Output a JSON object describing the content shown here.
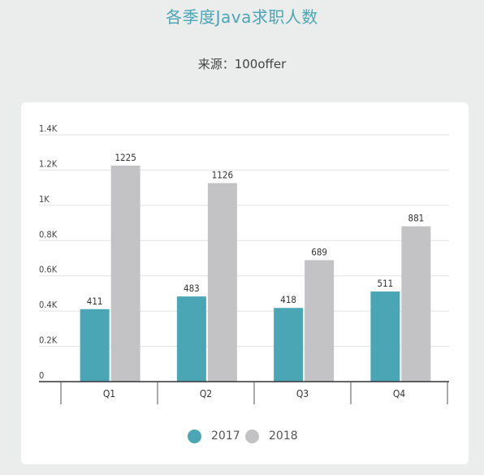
{
  "header": {
    "title": "各季度Java求职人数",
    "source": "来源：100offer"
  },
  "colors": {
    "series_2017": "#4aa6b5",
    "series_2018": "#c3c3c5",
    "background": "#ebecec",
    "card": "#ffffff"
  },
  "chart_data": {
    "type": "bar",
    "categories": [
      "Q1",
      "Q2",
      "Q3",
      "Q4"
    ],
    "series": [
      {
        "name": "2017",
        "values": [
          411,
          483,
          418,
          511
        ]
      },
      {
        "name": "2018",
        "values": [
          1225,
          1126,
          689,
          881
        ]
      }
    ],
    "yticks": [
      "0",
      "0.2K",
      "0.4K",
      "0.6K",
      "0.8K",
      "1K",
      "1.2K",
      "1.4K"
    ],
    "ylim": [
      0,
      1400
    ],
    "grid": true,
    "legend": "bottom"
  },
  "legend": {
    "items": [
      "2017",
      "2018"
    ]
  }
}
